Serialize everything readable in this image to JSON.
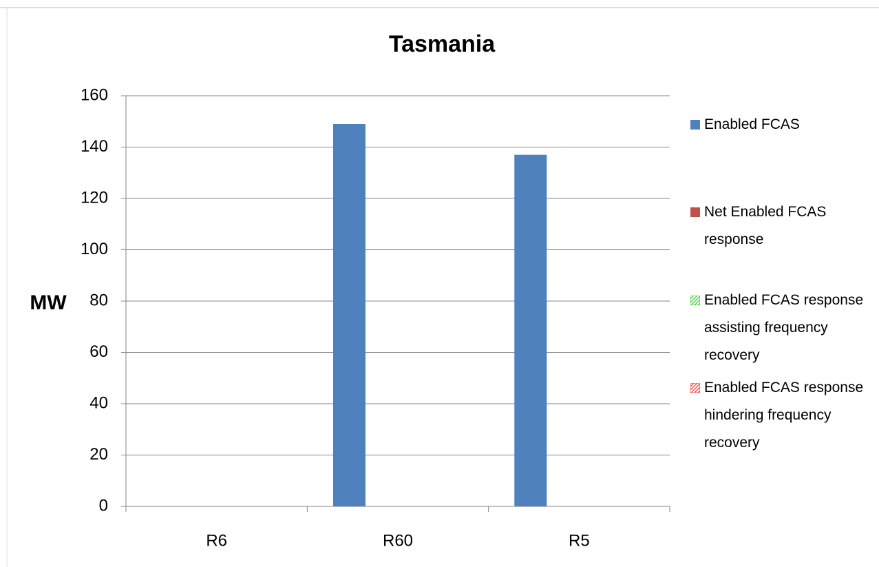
{
  "chart_data": {
    "type": "bar",
    "title": "Tasmania",
    "y_label": "MW",
    "categories": [
      "R6",
      "R60",
      "R5"
    ],
    "series": [
      {
        "name": "Enabled FCAS",
        "color": "#4f81bd",
        "values": [
          0,
          149,
          137
        ]
      },
      {
        "name": "Net Enabled FCAS response",
        "color": "#c0504d",
        "values": [
          0,
          0,
          0
        ]
      },
      {
        "name": "Enabled FCAS response assisting frequency recovery",
        "color": "#33cc33",
        "pattern": "hatch",
        "values": [
          0,
          0,
          0
        ]
      },
      {
        "name": "Enabled FCAS response hindering frequency recovery",
        "color": "#ff3333",
        "pattern": "hatch",
        "values": [
          0,
          0,
          0
        ]
      }
    ],
    "ylim": [
      0,
      160
    ],
    "yticks": [
      0,
      20,
      40,
      60,
      80,
      100,
      120,
      140,
      160
    ],
    "grid": true,
    "legend": "right"
  }
}
